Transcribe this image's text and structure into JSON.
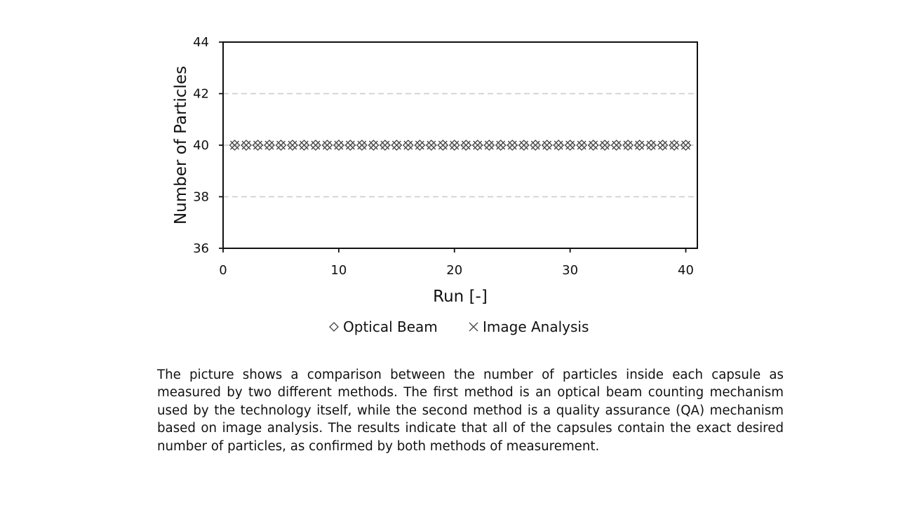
{
  "chart_data": {
    "type": "scatter",
    "xlabel": "Run [-]",
    "ylabel": "Number of Particles",
    "xlim": [
      0,
      41
    ],
    "ylim": [
      36,
      44
    ],
    "xticks": [
      0,
      10,
      20,
      30,
      40
    ],
    "yticks": [
      36,
      38,
      40,
      42,
      44
    ],
    "grid": "horizontal dashed",
    "legend_position": "bottom",
    "series": [
      {
        "name": "Optical Beam",
        "marker": "diamond",
        "color": "#444444",
        "x": [
          1,
          2,
          3,
          4,
          5,
          6,
          7,
          8,
          9,
          10,
          11,
          12,
          13,
          14,
          15,
          16,
          17,
          18,
          19,
          20,
          21,
          22,
          23,
          24,
          25,
          26,
          27,
          28,
          29,
          30,
          31,
          32,
          33,
          34,
          35,
          36,
          37,
          38,
          39,
          40
        ],
        "values": [
          40,
          40,
          40,
          40,
          40,
          40,
          40,
          40,
          40,
          40,
          40,
          40,
          40,
          40,
          40,
          40,
          40,
          40,
          40,
          40,
          40,
          40,
          40,
          40,
          40,
          40,
          40,
          40,
          40,
          40,
          40,
          40,
          40,
          40,
          40,
          40,
          40,
          40,
          40,
          40
        ]
      },
      {
        "name": "Image Analysis",
        "marker": "x",
        "color": "#444444",
        "x": [
          1,
          2,
          3,
          4,
          5,
          6,
          7,
          8,
          9,
          10,
          11,
          12,
          13,
          14,
          15,
          16,
          17,
          18,
          19,
          20,
          21,
          22,
          23,
          24,
          25,
          26,
          27,
          28,
          29,
          30,
          31,
          32,
          33,
          34,
          35,
          36,
          37,
          38,
          39,
          40
        ],
        "values": [
          40,
          40,
          40,
          40,
          40,
          40,
          40,
          40,
          40,
          40,
          40,
          40,
          40,
          40,
          40,
          40,
          40,
          40,
          40,
          40,
          40,
          40,
          40,
          40,
          40,
          40,
          40,
          40,
          40,
          40,
          40,
          40,
          40,
          40,
          40,
          40,
          40,
          40,
          40,
          40
        ]
      }
    ]
  },
  "caption": "The picture shows a comparison between the number of particles inside each capsule as measured by two different methods. The first method is an optical beam counting mechanism used by the technology itself, while the second method is a quality assurance (QA) mechanism based on image analysis. The results indicate that all of the capsules contain the exact desired number of particles, as confirmed by both methods of measurement."
}
